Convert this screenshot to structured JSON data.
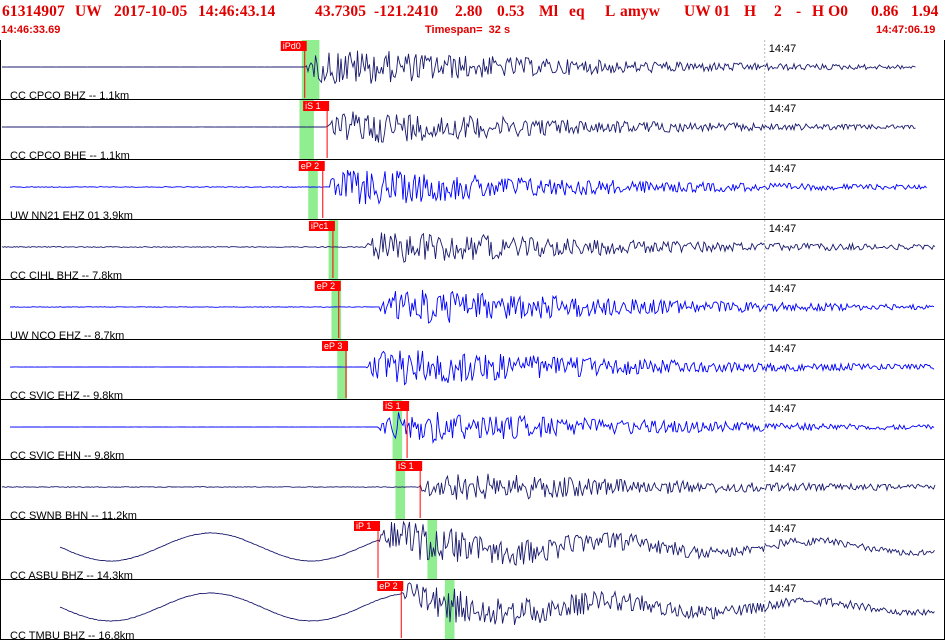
{
  "header": {
    "event_id": "61314907",
    "network": "UW",
    "origin_date": "2017-10-05",
    "origin_time": "14:46:43.14",
    "latitude": "43.7305",
    "longitude": "-121.2410",
    "depth": "2.80",
    "magnitude": "0.53",
    "mag_type": "Ml",
    "event_type": "eq",
    "flag": "L",
    "analyst": "amyw",
    "source": "UW 01",
    "quality": "H",
    "version": "2",
    "dash": "-",
    "processing": "H O0",
    "val1": "0.86",
    "val2": "1.94",
    "start_time": "14:46:33.69",
    "timespan": "Timespan=  32 s",
    "end_time": "14:47:06.19"
  },
  "colors": {
    "header_text": "#e00000",
    "pick": "#ff0000",
    "window": "#90ee90",
    "trace_dark": "#1a1a6e",
    "trace_blue": "#0000ff",
    "separator": "#000000"
  },
  "channels": [
    {
      "label": "CC CPCO BHZ -- 1.1km",
      "tick": "14:47",
      "color": "dark",
      "style": "quake",
      "pick": "iPd0",
      "pick_sec": 10.48,
      "win_sec": [
        10.38,
        11.48
      ],
      "onset": 10.48,
      "end": 31.5,
      "amp": 1.0,
      "noise": 0.04
    },
    {
      "label": "CC CPCO BHE -- 1.1km",
      "tick": "14:47",
      "color": "dark",
      "style": "quake",
      "pick": "iS 1",
      "pick_sec": 11.25,
      "win_sec": [
        10.3,
        11.2
      ],
      "onset": 11.25,
      "end": 31.5,
      "amp": 0.9,
      "noise": 0.04
    },
    {
      "label": "UW NN21 EHZ 01 3.9km",
      "tick": "14:47",
      "color": "blue",
      "style": "quake",
      "pick": "eP 2",
      "pick_sec": 11.1,
      "win_sec": [
        10.6,
        11.2
      ],
      "onset": 11.2,
      "end": 31.9,
      "amp": 1.0,
      "noise": 0.25
    },
    {
      "label": "CC CIHL BHZ -- 7.8km",
      "tick": "14:47",
      "color": "dark",
      "style": "quake",
      "pick": "iPc1",
      "pick_sec": 11.45,
      "win_sec": [
        11.3,
        11.9
      ],
      "onset": 12.5,
      "end": 32.5,
      "amp": 0.9,
      "noise": 0.3
    },
    {
      "label": "UW NCO EHZ -- 8.7km",
      "tick": "14:47",
      "color": "blue",
      "style": "quake",
      "pick": "eP 2",
      "pick_sec": 11.65,
      "win_sec": [
        11.4,
        12.0
      ],
      "onset": 13.0,
      "end": 32.6,
      "amp": 1.0,
      "noise": 0.2
    },
    {
      "label": "CC SVIC EHZ -- 9.8km",
      "tick": "14:47",
      "color": "blue",
      "style": "quake",
      "pick": "eP 3",
      "pick_sec": 11.9,
      "win_sec": [
        11.6,
        12.2
      ],
      "onset": 12.6,
      "end": 32.8,
      "amp": 1.0,
      "noise": 0.05
    },
    {
      "label": "CC SVIC EHN -- 9.8km",
      "tick": "14:47",
      "color": "blue",
      "style": "quake",
      "pick": "iS 1",
      "pick_sec": 14.0,
      "win_sec": [
        13.5,
        14.1
      ],
      "onset": 13.0,
      "end": 32.8,
      "amp": 0.9,
      "noise": 0.05
    },
    {
      "label": "CC SWNB BHN -- 11.2km",
      "tick": "14:47",
      "color": "dark",
      "style": "quake",
      "pick": "iS 1",
      "pick_sec": 14.45,
      "win_sec": [
        13.6,
        14.2
      ],
      "onset": 14.4,
      "end": 33.0,
      "amp": 0.8,
      "noise": 0.25
    },
    {
      "label": "CC ASBU BHZ -- 14.3km",
      "tick": "14:47",
      "color": "dark",
      "style": "long",
      "pick": "iP 1",
      "pick_sec": 13.0,
      "win_sec": [
        14.7,
        15.3
      ],
      "onset": 13.0,
      "end": 32.9,
      "amp": 1.0,
      "noise": 0.2
    },
    {
      "label": "CC TMBU BHZ -- 16.8km",
      "tick": "14:47",
      "color": "dark",
      "style": "long",
      "pick": "eP 2",
      "pick_sec": 13.8,
      "win_sec": [
        15.3,
        15.9
      ],
      "onset": 13.8,
      "end": 33.5,
      "amp": 1.0,
      "noise": 0.2
    }
  ]
}
